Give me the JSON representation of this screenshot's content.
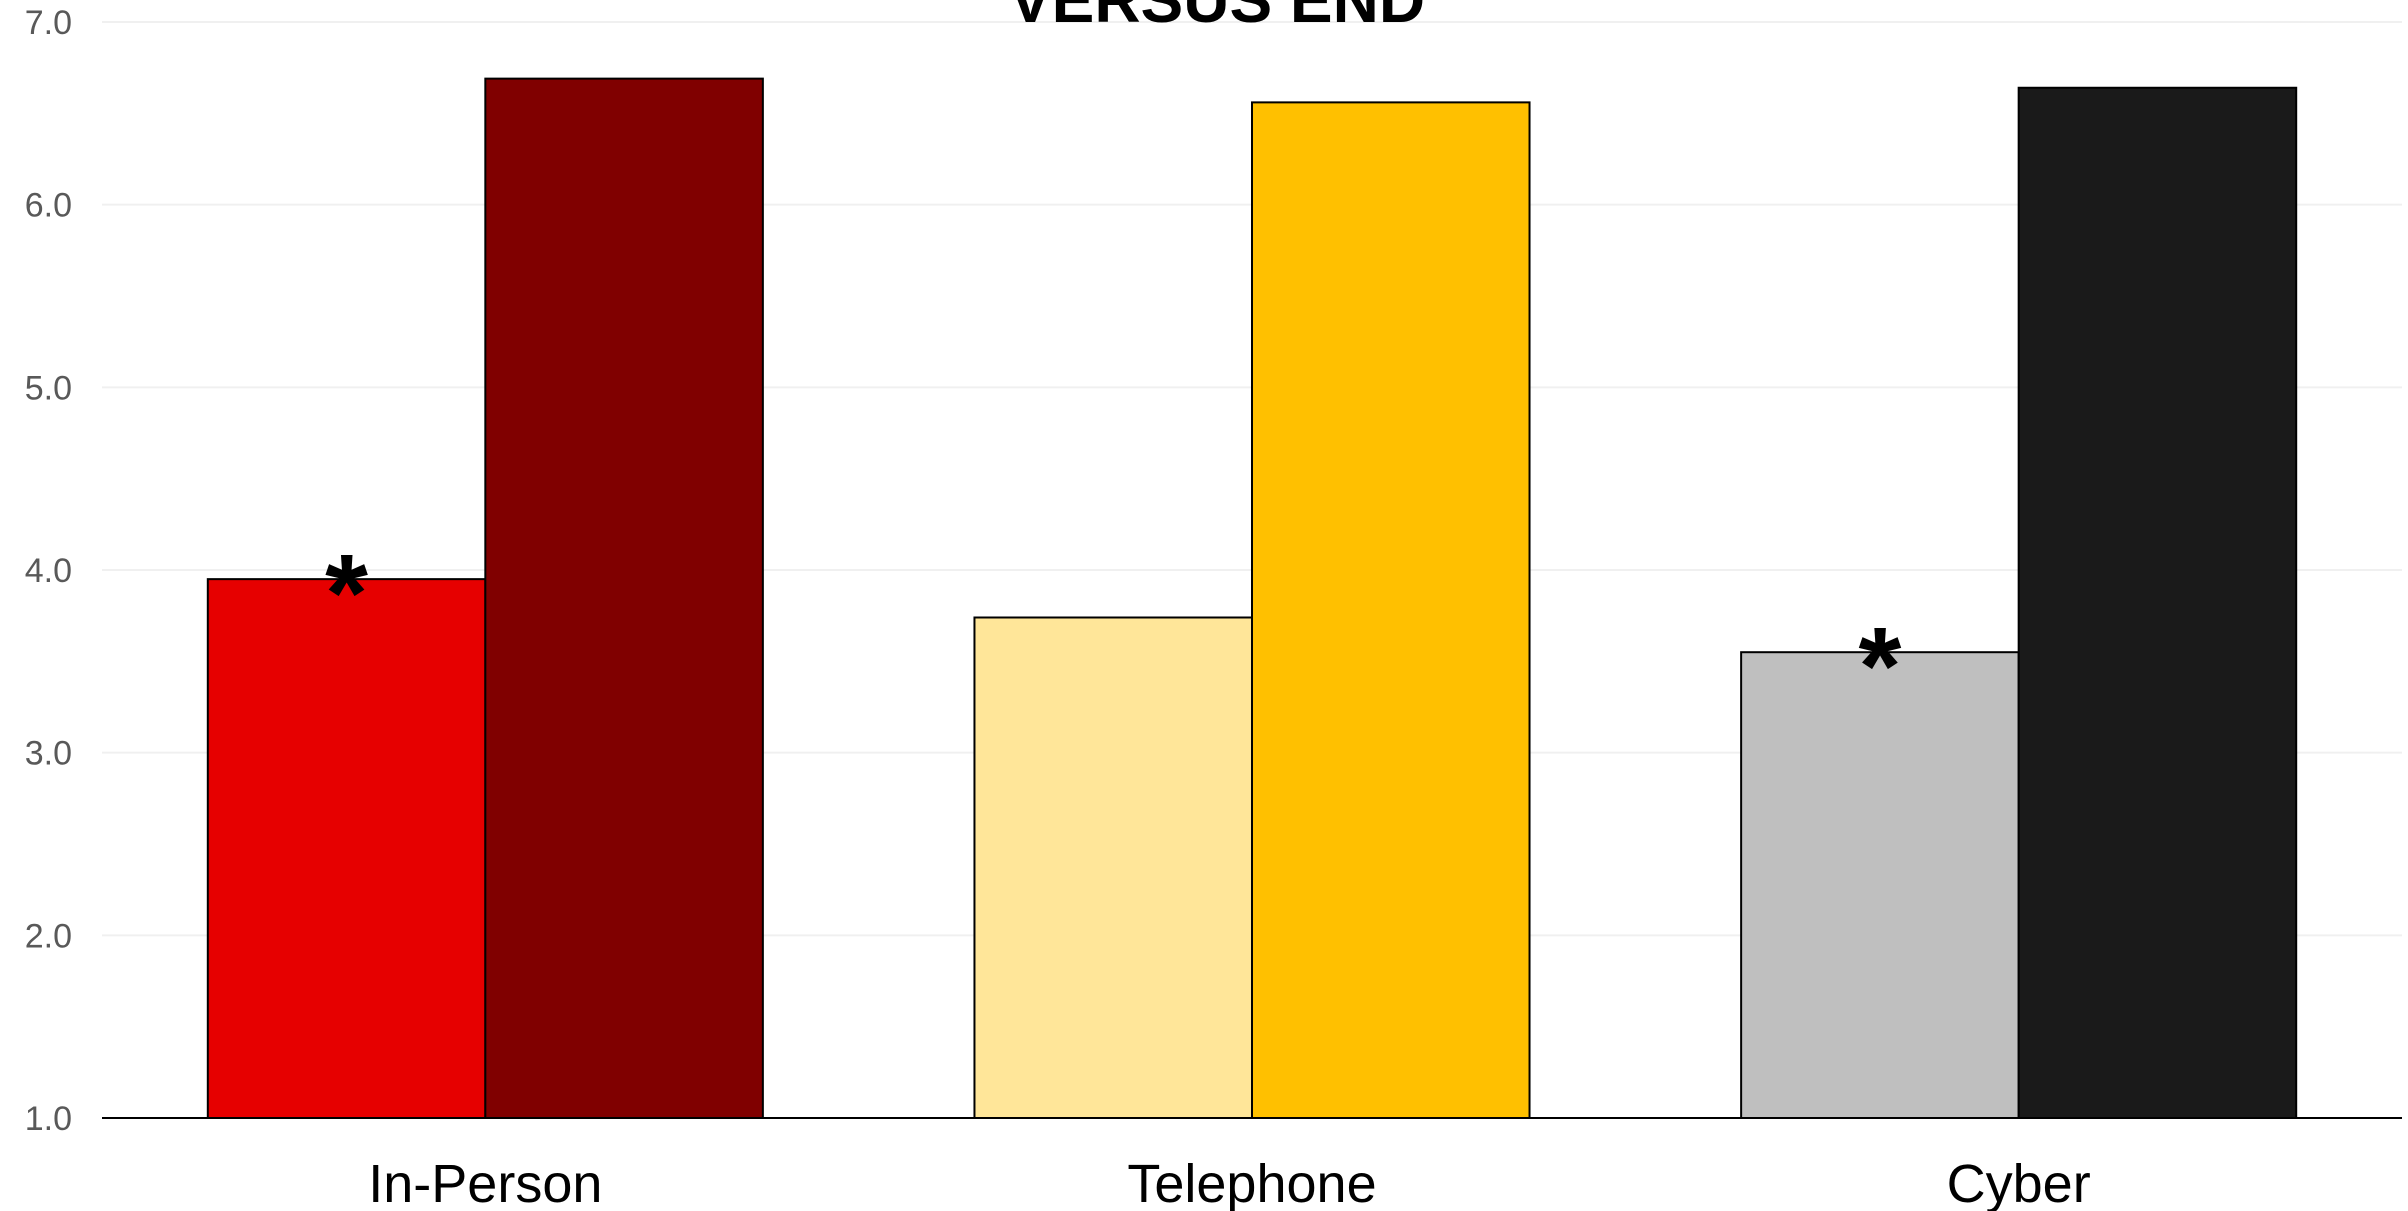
{
  "chart_data": {
    "type": "bar",
    "title": "VERSUS END",
    "xlabel": "",
    "ylabel": "",
    "ylim": [
      1.0,
      7.0
    ],
    "yticks": [
      "1.0",
      "2.0",
      "3.0",
      "4.0",
      "5.0",
      "6.0",
      "7.0"
    ],
    "grid": true,
    "legend": "none",
    "categories": [
      "In-Person",
      "Telephone",
      "Cyber"
    ],
    "series": [
      {
        "values": [
          3.95,
          3.74,
          3.55
        ],
        "colors": [
          "#E60000",
          "#FFE699",
          "#BFBFBF"
        ]
      },
      {
        "values": [
          6.69,
          6.56,
          6.64
        ],
        "colors": [
          "#800000",
          "#FFC000",
          "#1A1A1A"
        ]
      }
    ],
    "annotations": [
      {
        "text": "*",
        "category": "In-Person",
        "series_index": 0
      },
      {
        "text": "*",
        "category": "Cyber",
        "series_index": 0
      }
    ]
  }
}
